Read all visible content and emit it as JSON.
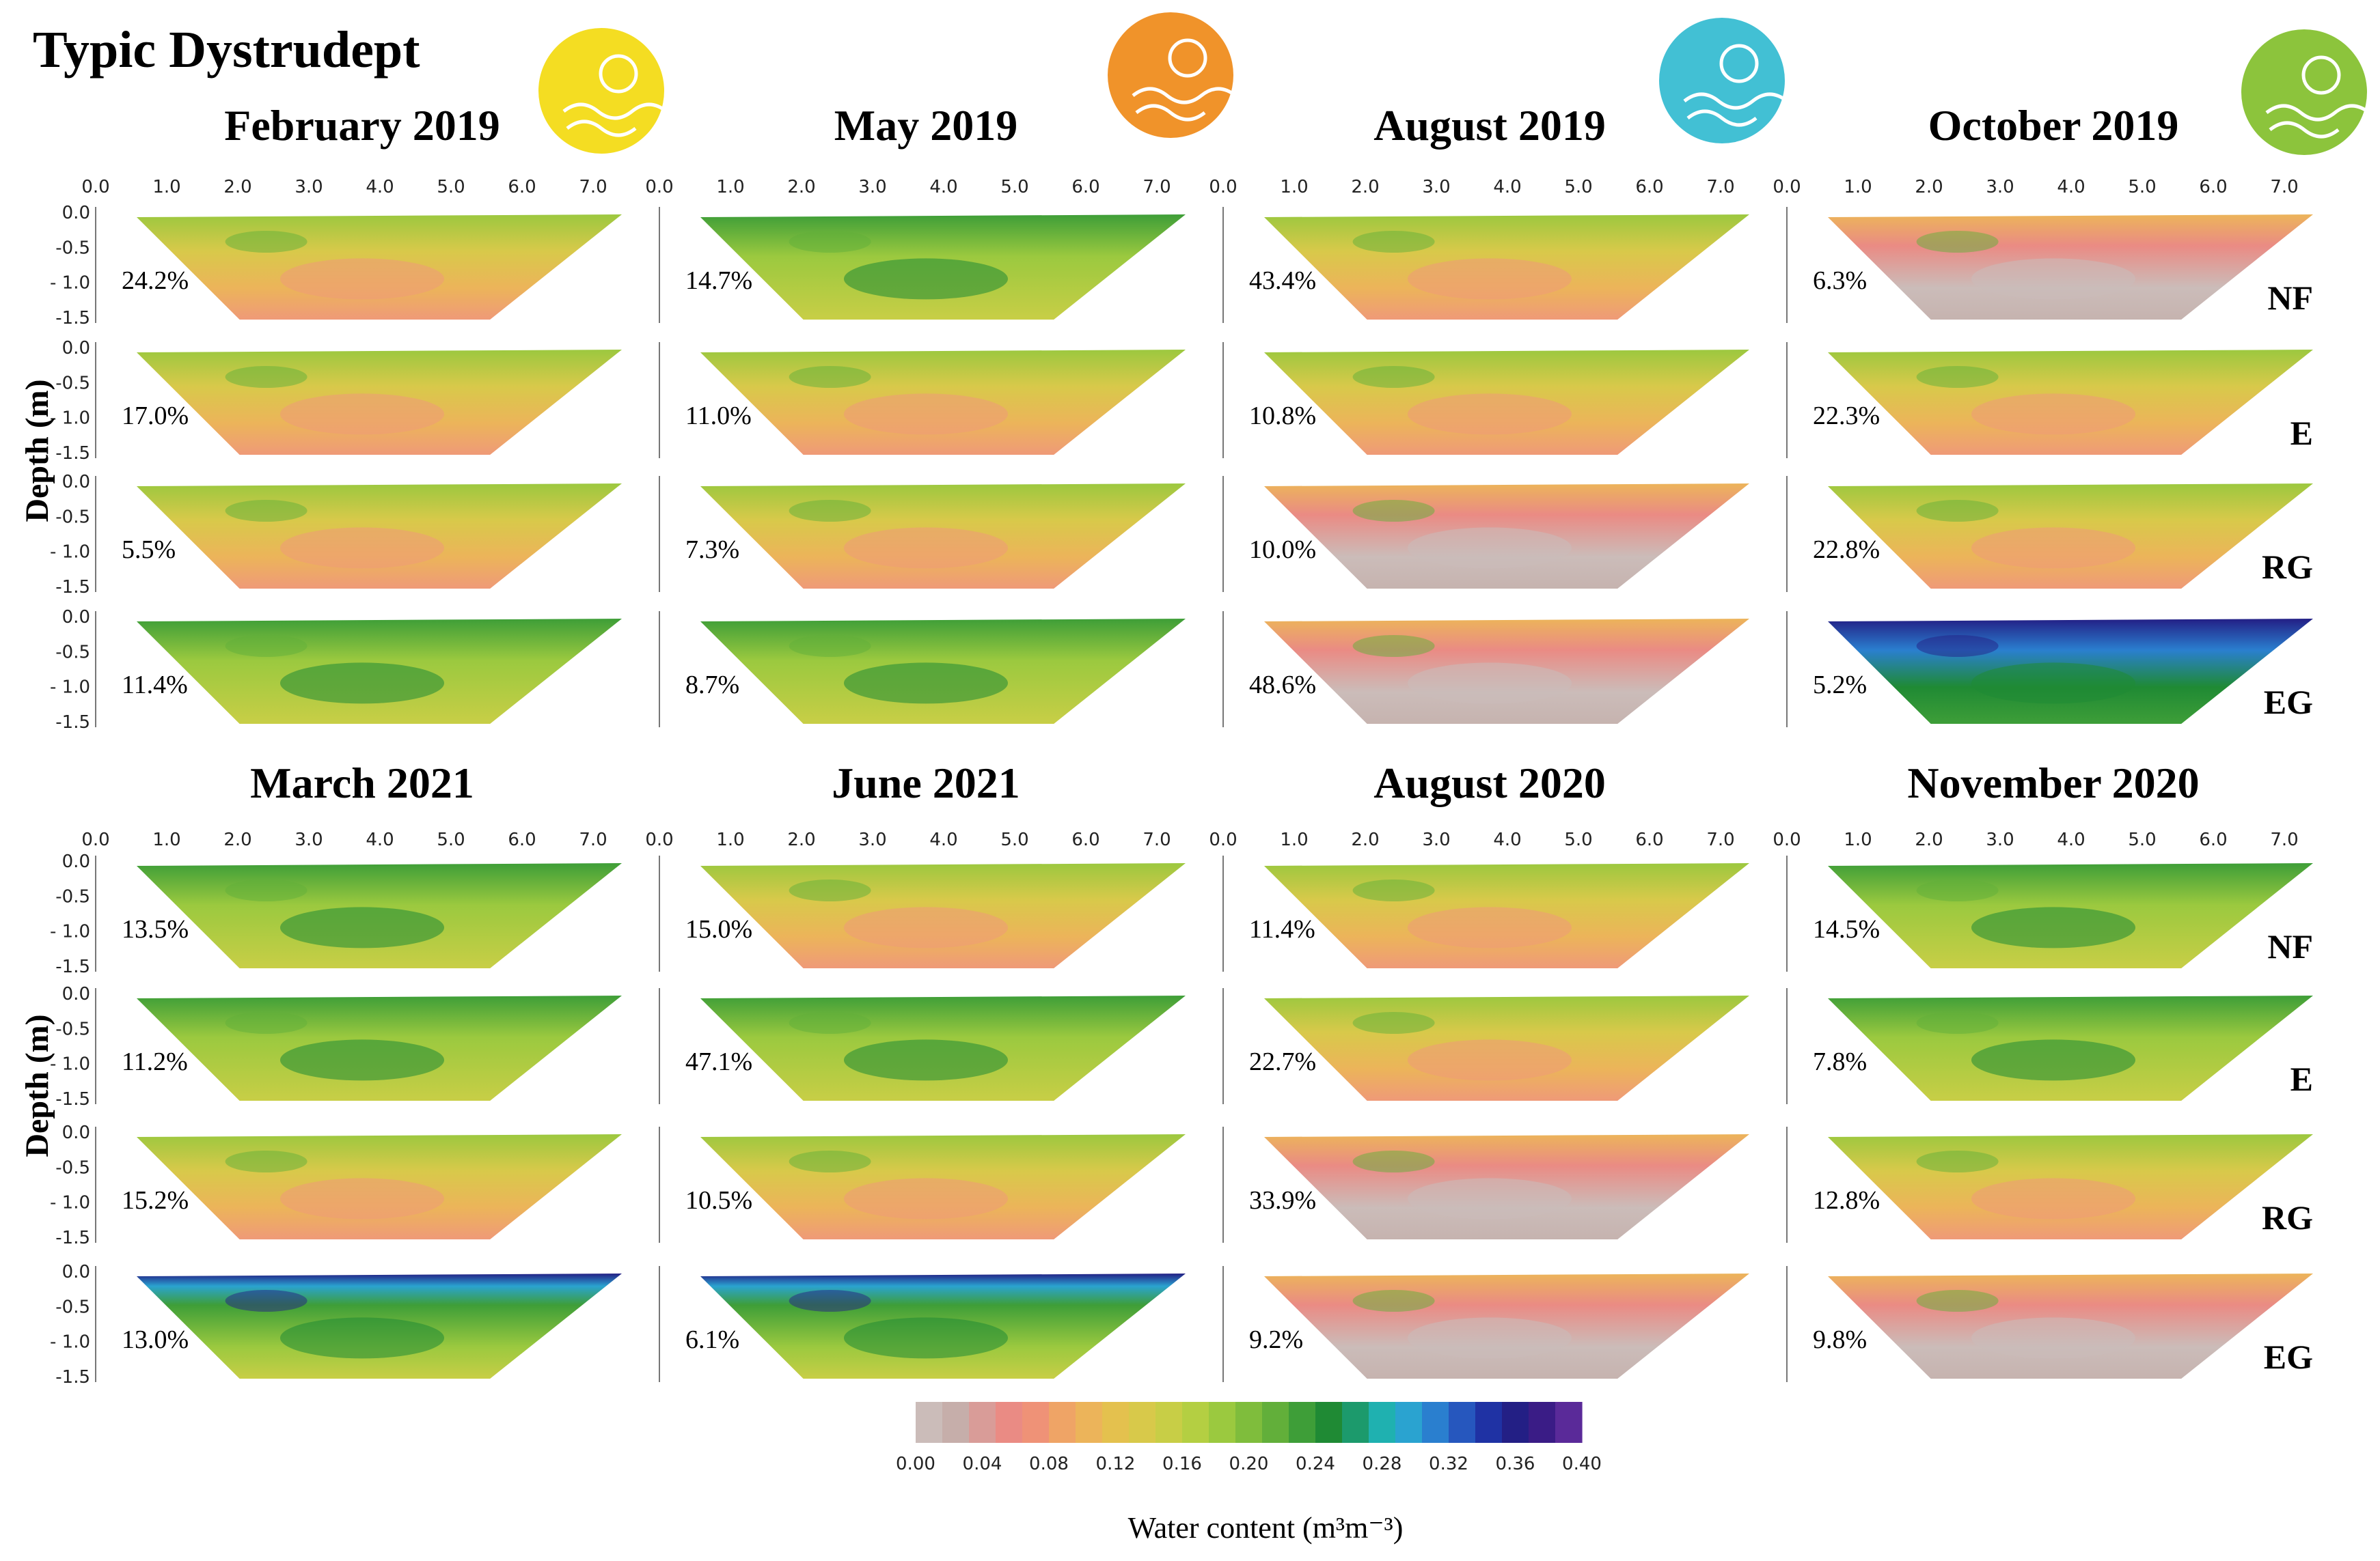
{
  "figure": {
    "main_title": "Typic Dystrudept",
    "depth_axis_label": "Depth (m)",
    "x_ticks": [
      "0.0",
      "1.0",
      "2.0",
      "3.0",
      "4.0",
      "5.0",
      "6.0",
      "7.0"
    ],
    "depth_ticks": [
      "0.0",
      "-0.5",
      "- 1.0",
      "-1.5"
    ],
    "treatments": [
      "NF",
      "E",
      "RG",
      "EG"
    ],
    "colorbar": {
      "title": "Water content (m³m⁻³)",
      "tick_labels": [
        "0.00",
        "0.04",
        "0.08",
        "0.12",
        "0.16",
        "0.20",
        "0.24",
        "0.28",
        "0.32",
        "0.36",
        "0.40"
      ],
      "colors": [
        "#cbbcb9",
        "#c6aeaa",
        "#d99c98",
        "#ea8b84",
        "#ef9277",
        "#efa466",
        "#ecb45a",
        "#e4c14e",
        "#d8c94a",
        "#c8ce46",
        "#b4cf42",
        "#9bc93f",
        "#7fbd3c",
        "#62af3a",
        "#3e9e38",
        "#1f8a34",
        "#1c9a6c",
        "#1fb1b0",
        "#2aa3d0",
        "#2a7fcf",
        "#2657be",
        "#1f32a4",
        "#231f85",
        "#3a1c86",
        "#5a2a99"
      ]
    },
    "season_icons": [
      {
        "name": "winter-icon",
        "color": "#f4dd22"
      },
      {
        "name": "spring-icon",
        "color": "#f0932a"
      },
      {
        "name": "summer-icon",
        "color": "#42c0d4"
      },
      {
        "name": "autumn-icon",
        "color": "#8cc43c"
      }
    ],
    "rows": [
      {
        "periods": [
          {
            "title": "February 2019",
            "panels": [
              {
                "treatment": "NF",
                "percent": "24.2%",
                "profile": "mid"
              },
              {
                "treatment": "E",
                "percent": "17.0%",
                "profile": "mid"
              },
              {
                "treatment": "RG",
                "percent": "5.5%",
                "profile": "mid"
              },
              {
                "treatment": "EG",
                "percent": "11.4%",
                "profile": "wet"
              }
            ]
          },
          {
            "title": "May 2019",
            "panels": [
              {
                "treatment": "NF",
                "percent": "14.7%",
                "profile": "wet"
              },
              {
                "treatment": "E",
                "percent": "11.0%",
                "profile": "mid"
              },
              {
                "treatment": "RG",
                "percent": "7.3%",
                "profile": "mid"
              },
              {
                "treatment": "EG",
                "percent": "8.7%",
                "profile": "wet"
              }
            ]
          },
          {
            "title": "August 2019",
            "panels": [
              {
                "treatment": "NF",
                "percent": "43.4%",
                "profile": "mid"
              },
              {
                "treatment": "E",
                "percent": "10.8%",
                "profile": "mid"
              },
              {
                "treatment": "RG",
                "percent": "10.0%",
                "profile": "dry"
              },
              {
                "treatment": "EG",
                "percent": "48.6%",
                "profile": "dry"
              }
            ]
          },
          {
            "title": "October 2019",
            "panels": [
              {
                "treatment": "NF",
                "percent": "6.3%",
                "profile": "dry"
              },
              {
                "treatment": "E",
                "percent": "22.3%",
                "profile": "mid"
              },
              {
                "treatment": "RG",
                "percent": "22.8%",
                "profile": "mid"
              },
              {
                "treatment": "EG",
                "percent": "5.2%",
                "profile": "vwet"
              }
            ]
          }
        ]
      },
      {
        "periods": [
          {
            "title": "March 2021",
            "panels": [
              {
                "treatment": "NF",
                "percent": "13.5%",
                "profile": "wet"
              },
              {
                "treatment": "E",
                "percent": "11.2%",
                "profile": "wet"
              },
              {
                "treatment": "RG",
                "percent": "15.2%",
                "profile": "mid"
              },
              {
                "treatment": "EG",
                "percent": "13.0%",
                "profile": "wettop"
              }
            ]
          },
          {
            "title": "June 2021",
            "panels": [
              {
                "treatment": "NF",
                "percent": "15.0%",
                "profile": "mid"
              },
              {
                "treatment": "E",
                "percent": "47.1%",
                "profile": "wet"
              },
              {
                "treatment": "RG",
                "percent": "10.5%",
                "profile": "mid"
              },
              {
                "treatment": "EG",
                "percent": "6.1%",
                "profile": "wettop"
              }
            ]
          },
          {
            "title": "August 2020",
            "panels": [
              {
                "treatment": "NF",
                "percent": "11.4%",
                "profile": "mid"
              },
              {
                "treatment": "E",
                "percent": "22.7%",
                "profile": "mid"
              },
              {
                "treatment": "RG",
                "percent": "33.9%",
                "profile": "dry"
              },
              {
                "treatment": "EG",
                "percent": "9.2%",
                "profile": "dry"
              }
            ]
          },
          {
            "title": "November 2020",
            "panels": [
              {
                "treatment": "NF",
                "percent": "14.5%",
                "profile": "wet"
              },
              {
                "treatment": "E",
                "percent": "7.8%",
                "profile": "wet"
              },
              {
                "treatment": "RG",
                "percent": "12.8%",
                "profile": "mid"
              },
              {
                "treatment": "EG",
                "percent": "9.8%",
                "profile": "dry"
              }
            ]
          }
        ]
      }
    ]
  }
}
